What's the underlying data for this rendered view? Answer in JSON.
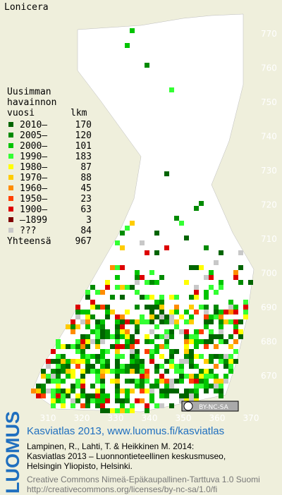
{
  "title": "Lonicera",
  "legend": {
    "heading": [
      "Uusimman",
      "havainnon",
      "vuosi"
    ],
    "count_heading": "lkm",
    "rows": [
      {
        "label": "2010–",
        "count": 170,
        "color": "#006400"
      },
      {
        "label": "2005–",
        "count": 120,
        "color": "#008a00"
      },
      {
        "label": "2000–",
        "count": 101,
        "color": "#00c400"
      },
      {
        "label": "1990–",
        "count": 183,
        "color": "#33ff33"
      },
      {
        "label": "1980–",
        "count": 87,
        "color": "#ffff00"
      },
      {
        "label": "1970–",
        "count": 88,
        "color": "#ffcc00"
      },
      {
        "label": "1960–",
        "count": 45,
        "color": "#ff8c00"
      },
      {
        "label": "1950–",
        "count": 23,
        "color": "#ff4000"
      },
      {
        "label": "1900–",
        "count": 63,
        "color": "#dd0000"
      },
      {
        "label": "–1899",
        "count": 3,
        "color": "#800000"
      },
      {
        "label": "???",
        "count": 84,
        "color": "#c8c8c8"
      }
    ],
    "total_label": "Yhteensä",
    "total": 967
  },
  "grid": {
    "northing": [
      "770",
      "760",
      "750",
      "740",
      "730",
      "720",
      "710",
      "700",
      "690",
      "680",
      "670"
    ],
    "easting": [
      "310",
      "320",
      "330",
      "340",
      "350",
      "360",
      "370"
    ]
  },
  "badge": "BY-NC-SA",
  "footer": {
    "logo": "LUOMUS",
    "link": "Kasviatlas 2013, www.luomus.fi/kasviatlas",
    "citation": [
      "Lampinen, R., Lahti, T. & Heikkinen M. 2014:",
      "Kasviatlas 2013 – Luonnontieteellinen keskusmuseo,",
      "Helsingin Yliopisto, Helsinki."
    ],
    "license": [
      "Creative Commons Nimeä-Epäkaupallinen-Tarttuva 1.0 Suomi",
      "http://creativecommons.org/licenses/by-nc-sa/1.0/fi"
    ]
  }
}
